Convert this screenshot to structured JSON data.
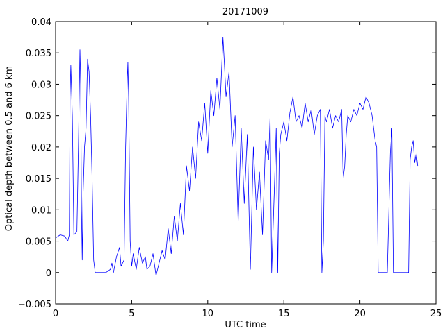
{
  "chart_data": {
    "type": "line",
    "title": "20171009",
    "xlabel": "UTC time",
    "ylabel": "Optical depth between 0.5 and 6 km",
    "xlim": [
      0,
      25
    ],
    "ylim": [
      -0.005,
      0.04
    ],
    "xticks": [
      0,
      5,
      10,
      15,
      20,
      25
    ],
    "xtick_labels": [
      "0",
      "5",
      "10",
      "15",
      "20",
      "25"
    ],
    "yticks": [
      -0.005,
      0,
      0.005,
      0.01,
      0.015,
      0.02,
      0.025,
      0.03,
      0.035,
      0.04
    ],
    "ytick_labels": [
      "−0.005",
      "0",
      "0.005",
      "0.01",
      "0.015",
      "0.02",
      "0.025",
      "0.03",
      "0.035",
      "0.04"
    ],
    "grid": false,
    "line_color": "#0000ff",
    "series": [
      {
        "x": [
          0,
          0.3,
          0.6,
          0.8,
          0.9,
          0.95,
          1.0,
          1.1,
          1.2,
          1.4,
          1.5,
          1.6,
          1.65,
          1.7,
          1.75,
          1.8,
          1.9,
          2.0,
          2.1,
          2.2,
          2.3,
          2.4,
          2.5,
          2.6,
          2.7,
          3.0,
          3.3,
          3.6,
          3.7,
          3.8,
          4.0,
          4.2,
          4.3,
          4.5,
          4.6,
          4.7,
          4.75,
          4.8,
          4.9,
          5.0,
          5.1,
          5.3,
          5.5,
          5.7,
          5.9,
          6.0,
          6.2,
          6.4,
          6.6,
          6.8,
          7.0,
          7.2,
          7.4,
          7.6,
          7.8,
          8.0,
          8.2,
          8.4,
          8.6,
          8.8,
          9.0,
          9.2,
          9.4,
          9.6,
          9.8,
          10.0,
          10.2,
          10.4,
          10.6,
          10.8,
          11.0,
          11.1,
          11.2,
          11.4,
          11.6,
          11.8,
          12.0,
          12.2,
          12.4,
          12.6,
          12.8,
          13.0,
          13.2,
          13.4,
          13.6,
          13.8,
          14.0,
          14.1,
          14.2,
          14.4,
          14.5,
          14.6,
          14.7,
          14.8,
          15.0,
          15.2,
          15.4,
          15.6,
          15.8,
          16.0,
          16.2,
          16.4,
          16.6,
          16.8,
          17.0,
          17.2,
          17.4,
          17.5,
          17.6,
          17.7,
          17.8,
          18.0,
          18.2,
          18.4,
          18.6,
          18.8,
          18.9,
          19.0,
          19.1,
          19.2,
          19.4,
          19.6,
          19.8,
          20.0,
          20.2,
          20.4,
          20.6,
          20.8,
          21.0,
          21.1,
          21.2,
          21.4,
          21.6,
          21.8,
          22.0,
          22.1,
          22.2,
          22.3,
          22.4,
          22.6,
          22.8,
          23.0,
          23.2,
          23.3,
          23.4,
          23.5,
          23.6,
          23.7,
          23.8
        ],
        "y": [
          0.0055,
          0.006,
          0.0058,
          0.005,
          0.006,
          0.028,
          0.033,
          0.025,
          0.006,
          0.0065,
          0.02,
          0.0355,
          0.03,
          0.01,
          0.002,
          0.012,
          0.02,
          0.023,
          0.034,
          0.032,
          0.025,
          0.015,
          0.002,
          0.0,
          0.0,
          0.0,
          0.0,
          0.0005,
          0.0015,
          0.0,
          0.0025,
          0.004,
          0.001,
          0.002,
          0.02,
          0.03,
          0.0335,
          0.028,
          0.005,
          0.001,
          0.003,
          0.0005,
          0.004,
          0.0015,
          0.0025,
          0.0005,
          0.001,
          0.003,
          -0.0005,
          0.0015,
          0.0035,
          0.002,
          0.007,
          0.003,
          0.009,
          0.005,
          0.011,
          0.006,
          0.017,
          0.013,
          0.02,
          0.015,
          0.024,
          0.021,
          0.027,
          0.019,
          0.029,
          0.025,
          0.031,
          0.026,
          0.0375,
          0.033,
          0.028,
          0.032,
          0.02,
          0.025,
          0.008,
          0.023,
          0.011,
          0.022,
          0.0005,
          0.02,
          0.01,
          0.016,
          0.006,
          0.021,
          0.018,
          0.025,
          0.0,
          0.015,
          0.023,
          0.0,
          0.019,
          0.022,
          0.024,
          0.021,
          0.0255,
          0.028,
          0.024,
          0.025,
          0.023,
          0.027,
          0.024,
          0.026,
          0.022,
          0.025,
          0.026,
          0.0,
          0.005,
          0.025,
          0.024,
          0.026,
          0.023,
          0.025,
          0.024,
          0.026,
          0.015,
          0.017,
          0.022,
          0.025,
          0.024,
          0.026,
          0.025,
          0.027,
          0.026,
          0.028,
          0.027,
          0.025,
          0.021,
          0.02,
          0.0,
          0.0,
          0.0,
          0.0,
          0.019,
          0.023,
          0.0,
          0.0,
          0.0,
          0.0,
          0.0,
          0.0,
          0.0,
          0.018,
          0.02,
          0.021,
          0.0175,
          0.019,
          0.017
        ]
      }
    ]
  }
}
